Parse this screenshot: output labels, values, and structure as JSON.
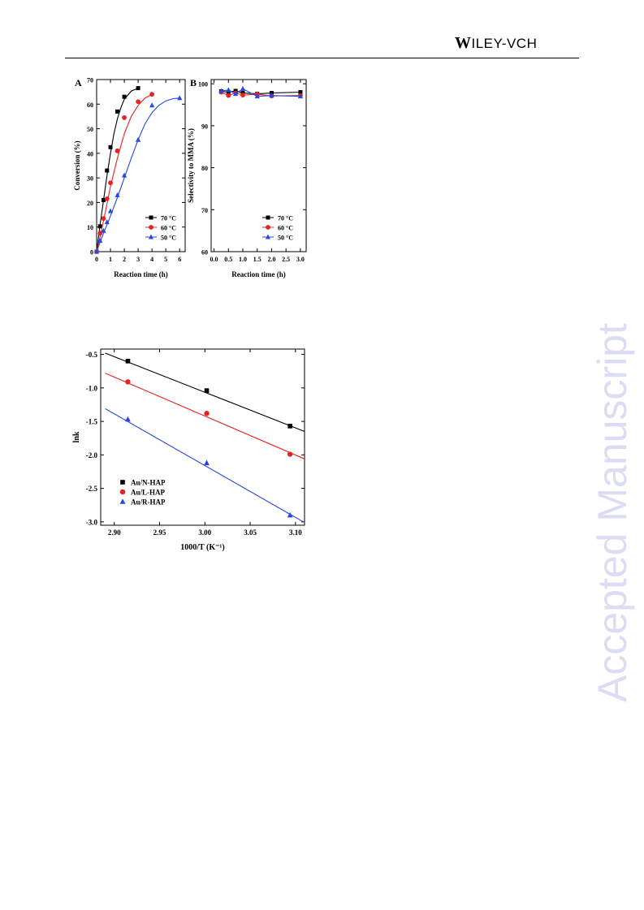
{
  "header": {
    "brand_big": "W",
    "brand_rest": "ILEY",
    "brand_suffix": "-VCH"
  },
  "watermark": "Accepted Manuscript",
  "chart_data": [
    {
      "type": "scatter",
      "panel_label": "A",
      "xlabel": "Reaction time (h)",
      "ylabel": "Conversion (%)",
      "xlim": [
        0,
        6.4
      ],
      "ylim": [
        0,
        70
      ],
      "xticks": [
        0,
        1,
        2,
        3,
        4,
        5,
        6
      ],
      "yticks": [
        0,
        10,
        20,
        30,
        40,
        50,
        60,
        70
      ],
      "legend_position": "bottom-right",
      "series": [
        {
          "name": "70 °C",
          "color": "#000000",
          "marker": "square",
          "x": [
            0,
            0.25,
            0.5,
            0.75,
            1,
            1.5,
            2,
            3
          ],
          "y": [
            0,
            10.3,
            21,
            33,
            42.5,
            57,
            63,
            66.5
          ],
          "fit": [
            [
              0,
              0
            ],
            [
              0.25,
              11
            ],
            [
              0.5,
              21
            ],
            [
              0.75,
              31
            ],
            [
              1,
              40
            ],
            [
              1.25,
              48
            ],
            [
              1.5,
              54
            ],
            [
              1.75,
              58.5
            ],
            [
              2,
              62
            ],
            [
              2.5,
              65.3
            ],
            [
              3,
              66.5
            ]
          ]
        },
        {
          "name": "60 °C",
          "color": "#e52421",
          "marker": "circle",
          "x": [
            0,
            0.25,
            0.5,
            0.75,
            1,
            1.5,
            2,
            3,
            4
          ],
          "y": [
            0,
            7.5,
            13.5,
            21.5,
            28,
            41,
            54.5,
            61,
            64
          ],
          "fit": [
            [
              0,
              0
            ],
            [
              0.25,
              6
            ],
            [
              0.5,
              12.5
            ],
            [
              0.75,
              19.5
            ],
            [
              1,
              26.5
            ],
            [
              1.5,
              38
            ],
            [
              2,
              48
            ],
            [
              2.5,
              55
            ],
            [
              3,
              59.5
            ],
            [
              3.5,
              62.5
            ],
            [
              4,
              64
            ]
          ]
        },
        {
          "name": "50 °C",
          "color": "#2546e8",
          "marker": "triangle",
          "x": [
            0,
            0.25,
            0.5,
            0.75,
            1,
            1.5,
            2,
            3,
            4,
            6
          ],
          "y": [
            0,
            4.5,
            8.5,
            12,
            16.5,
            23,
            31,
            45.5,
            59.5,
            62.5
          ],
          "fit": [
            [
              0,
              0
            ],
            [
              0.5,
              7.5
            ],
            [
              1,
              14.5
            ],
            [
              1.5,
              22
            ],
            [
              2,
              30
            ],
            [
              2.5,
              38
            ],
            [
              3,
              45.5
            ],
            [
              3.5,
              52
            ],
            [
              4,
              56.5
            ],
            [
              4.5,
              59.5
            ],
            [
              5,
              61.3
            ],
            [
              5.5,
              62.2
            ],
            [
              6,
              62.5
            ]
          ]
        }
      ]
    },
    {
      "type": "line",
      "panel_label": "B",
      "xlabel": "Reaction time (h)",
      "ylabel": "Selectivity to MMA (%)",
      "xlim": [
        -0.1,
        3.2
      ],
      "ylim": [
        60,
        101
      ],
      "xticks": [
        0.0,
        0.5,
        1.0,
        1.5,
        2.0,
        2.5,
        3.0
      ],
      "xtick_labels": [
        "0.0",
        "0.5",
        "1.0",
        "1.5",
        "2.0",
        "2.5",
        "3.0"
      ],
      "yticks": [
        60,
        70,
        80,
        90,
        100
      ],
      "legend_position": "bottom-right",
      "series": [
        {
          "name": "70 °C",
          "color": "#000000",
          "marker": "square",
          "x": [
            0.25,
            0.5,
            0.75,
            1,
            1.5,
            2,
            3
          ],
          "y": [
            98.2,
            98.0,
            98.3,
            97.8,
            97.6,
            97.8,
            98.0
          ]
        },
        {
          "name": "60 °C",
          "color": "#e52421",
          "marker": "circle",
          "x": [
            0.25,
            0.5,
            0.75,
            1,
            1.5,
            2,
            3
          ],
          "y": [
            98.0,
            97.2,
            97.8,
            97.3,
            97.5,
            97.1,
            97.2
          ]
        },
        {
          "name": "50 °C",
          "color": "#2546e8",
          "marker": "triangle",
          "x": [
            0.25,
            0.5,
            0.75,
            1,
            1.5,
            2,
            3
          ],
          "y": [
            98.3,
            98.5,
            97.6,
            98.8,
            97.0,
            97.2,
            97.0
          ]
        }
      ]
    },
    {
      "type": "scatter",
      "xlabel": "1000/T (K⁻¹)",
      "ylabel": "lnk",
      "xlim": [
        2.885,
        3.11
      ],
      "ylim": [
        -3.05,
        -0.42
      ],
      "xticks": [
        2.9,
        2.95,
        3.0,
        3.05,
        3.1
      ],
      "xtick_labels": [
        "2.90",
        "2.95",
        "3.00",
        "3.05",
        "3.10"
      ],
      "yticks": [
        -3.0,
        -2.5,
        -2.0,
        -1.5,
        -1.0,
        -0.5
      ],
      "ytick_labels": [
        "-3.0",
        "-2.5",
        "-2.0",
        "-1.5",
        "-1.0",
        "-0.5"
      ],
      "legend_position": "bottom-left",
      "series": [
        {
          "name": "Au/N-HAP",
          "color": "#000000",
          "marker": "square",
          "x": [
            2.915,
            3.002,
            3.094
          ],
          "y": [
            -0.6,
            -1.04,
            -1.57
          ],
          "fit": [
            [
              2.89,
              -0.48
            ],
            [
              3.11,
              -1.65
            ]
          ]
        },
        {
          "name": "Au/L-HAP",
          "color": "#e52421",
          "marker": "circle",
          "x": [
            2.915,
            3.002,
            3.094
          ],
          "y": [
            -0.91,
            -1.38,
            -1.99
          ],
          "fit": [
            [
              2.89,
              -0.78
            ],
            [
              3.11,
              -2.06
            ]
          ]
        },
        {
          "name": "Au/R-HAP",
          "color": "#2546e8",
          "marker": "triangle",
          "x": [
            2.915,
            3.002,
            3.094
          ],
          "y": [
            -1.47,
            -2.12,
            -2.9
          ],
          "fit": [
            [
              2.89,
              -1.31
            ],
            [
              3.11,
              -3.01
            ]
          ]
        }
      ]
    }
  ]
}
